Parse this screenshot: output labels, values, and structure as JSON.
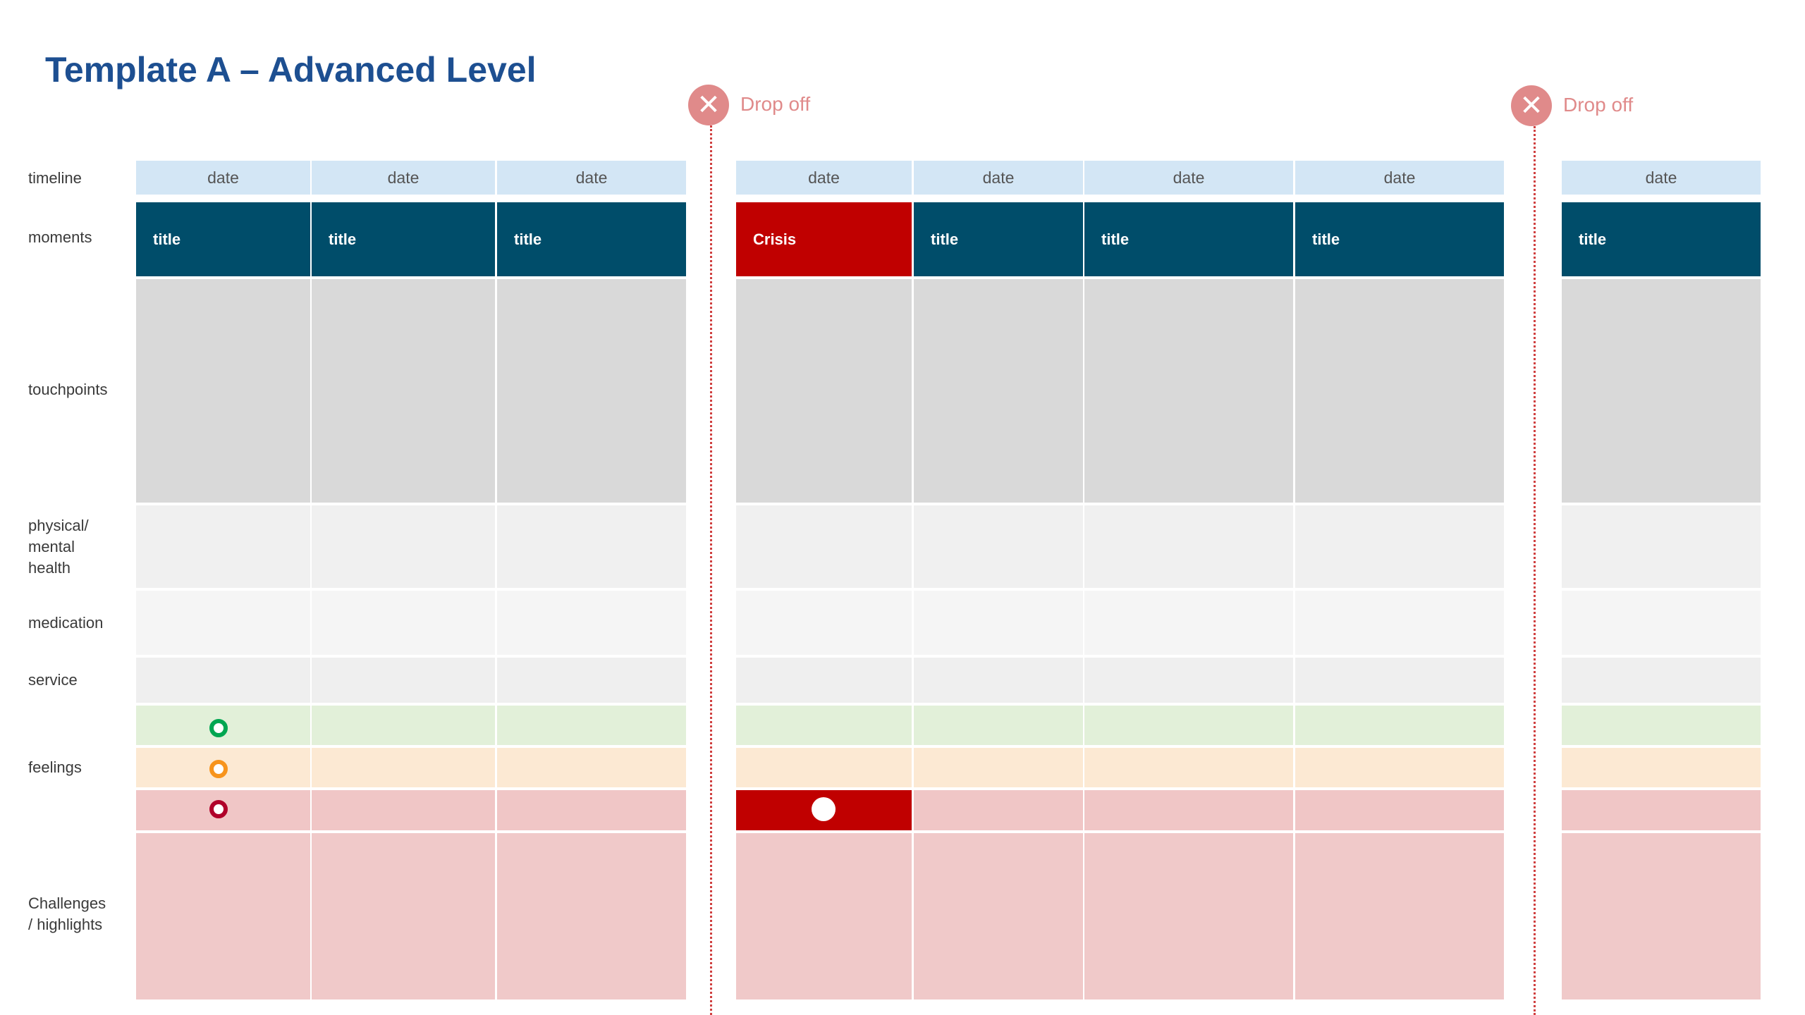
{
  "title": "Template A – Advanced Level",
  "row_labels": {
    "timeline": "timeline",
    "moments": "moments",
    "touchpoints": "touchpoints",
    "health": "physical/\nmental\nhealth",
    "medication": "medication",
    "service": "service",
    "feelings": "feelings",
    "challenges": "Challenges\n/ highlights"
  },
  "columns": [
    {
      "date": "date",
      "moment": "title"
    },
    {
      "date": "date",
      "moment": "title"
    },
    {
      "date": "date",
      "moment": "title"
    },
    {
      "date": "date",
      "moment": "Crisis",
      "crisis": true
    },
    {
      "date": "date",
      "moment": "title"
    },
    {
      "date": "date",
      "moment": "title"
    },
    {
      "date": "date",
      "moment": "title"
    },
    {
      "date": "date",
      "moment": "title"
    }
  ],
  "drop_offs": [
    {
      "label": "Drop off",
      "icon": "close-icon"
    },
    {
      "label": "Drop off",
      "icon": "close-icon"
    }
  ],
  "feeling_markers": {
    "positive_color": "#00a651",
    "neutral_color": "#f7941d",
    "negative_color": "#b0002a",
    "crisis_color": "#c00000"
  }
}
